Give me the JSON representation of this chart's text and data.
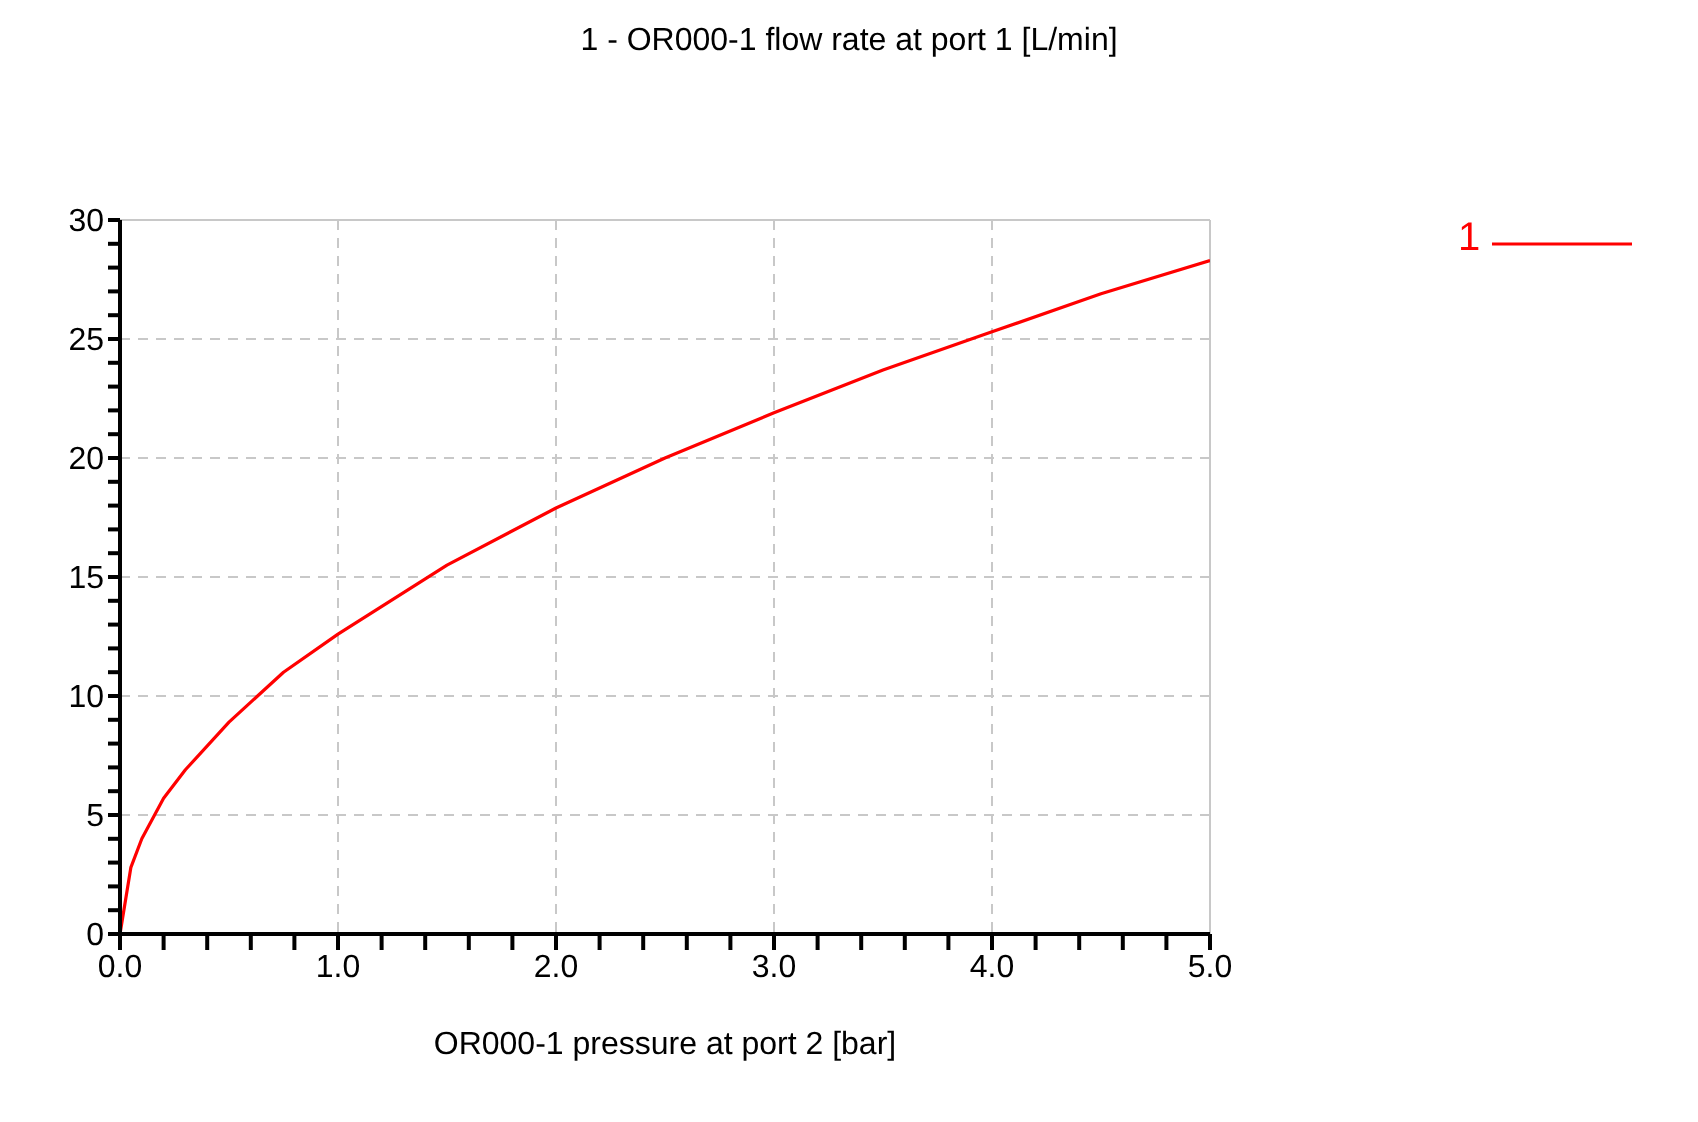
{
  "chart_data": {
    "type": "line",
    "title": "1 - OR000-1 flow rate at port 1 [L/min]",
    "xlabel": "OR000-1 pressure at port 2 [bar]",
    "x": [
      0,
      0.05,
      0.1,
      0.2,
      0.3,
      0.5,
      0.75,
      1,
      1.5,
      2,
      2.5,
      3,
      3.5,
      4,
      4.5,
      5
    ],
    "series": [
      {
        "name": "1",
        "color": "#ff0000",
        "values": [
          0,
          2.8,
          4.0,
          5.7,
          6.9,
          8.9,
          11.0,
          12.6,
          15.5,
          17.9,
          20.0,
          21.9,
          23.7,
          25.3,
          26.9,
          28.3
        ]
      }
    ],
    "xlim": [
      0,
      5
    ],
    "xticks": [
      {
        "value": 0,
        "label": "0.0"
      },
      {
        "value": 0.2,
        "label": null
      },
      {
        "value": 0.4,
        "label": null
      },
      {
        "value": 0.6,
        "label": null
      },
      {
        "value": 0.8,
        "label": null
      },
      {
        "value": 1,
        "label": "1.0"
      },
      {
        "value": 1.2,
        "label": null
      },
      {
        "value": 1.4,
        "label": null
      },
      {
        "value": 1.6,
        "label": null
      },
      {
        "value": 1.8,
        "label": null
      },
      {
        "value": 2,
        "label": "2.0"
      },
      {
        "value": 2.2,
        "label": null
      },
      {
        "value": 2.4,
        "label": null
      },
      {
        "value": 2.6,
        "label": null
      },
      {
        "value": 2.8,
        "label": null
      },
      {
        "value": 3,
        "label": "3.0"
      },
      {
        "value": 3.2,
        "label": null
      },
      {
        "value": 3.4,
        "label": null
      },
      {
        "value": 3.6,
        "label": null
      },
      {
        "value": 3.8,
        "label": null
      },
      {
        "value": 4,
        "label": "4.0"
      },
      {
        "value": 4.2,
        "label": null
      },
      {
        "value": 4.4,
        "label": null
      },
      {
        "value": 4.6,
        "label": null
      },
      {
        "value": 4.8,
        "label": null
      },
      {
        "value": 5,
        "label": "5.0"
      }
    ],
    "ylim": [
      0,
      30
    ],
    "yticks": [
      0,
      {
        "value": 1,
        "label": null
      },
      {
        "value": 2,
        "label": null
      },
      {
        "value": 3,
        "label": null
      },
      {
        "value": 4,
        "label": null
      },
      5,
      {
        "value": 6,
        "label": null
      },
      {
        "value": 7,
        "label": null
      },
      {
        "value": 8,
        "label": null
      },
      {
        "value": 9,
        "label": null
      },
      10,
      {
        "value": 11,
        "label": null
      },
      {
        "value": 12,
        "label": null
      },
      {
        "value": 13,
        "label": null
      },
      {
        "value": 14,
        "label": null
      },
      15,
      {
        "value": 16,
        "label": null
      },
      {
        "value": 17,
        "label": null
      },
      {
        "value": 18,
        "label": null
      },
      {
        "value": 19,
        "label": null
      },
      20,
      {
        "value": 21,
        "label": null
      },
      {
        "value": 22,
        "label": null
      },
      {
        "value": 23,
        "label": null
      },
      {
        "value": 24,
        "label": null
      },
      25,
      {
        "value": 26,
        "label": null
      },
      {
        "value": 27,
        "label": null
      },
      {
        "value": 28,
        "label": null
      },
      {
        "value": 29,
        "label": null
      },
      30
    ],
    "grid": true,
    "legend": "top right",
    "marker": "none",
    "line_style": "solid"
  }
}
